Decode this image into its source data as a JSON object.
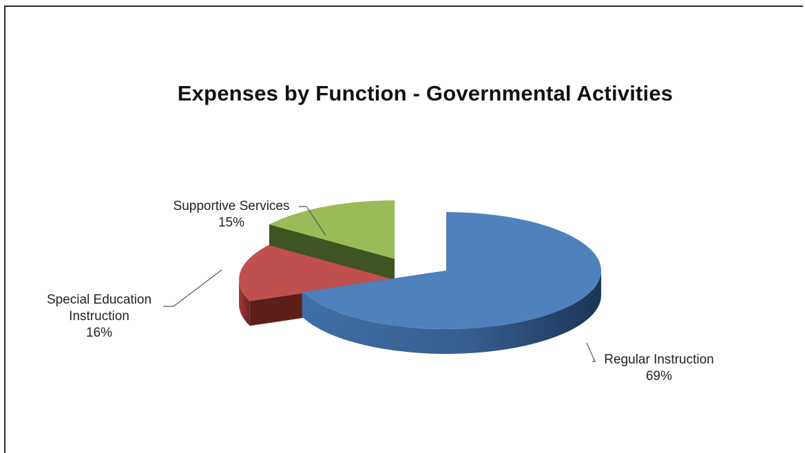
{
  "chart_data": {
    "type": "pie",
    "title": "Expenses by Function - Governmental Activities",
    "slices": [
      {
        "name": "Regular Instruction",
        "label_lines": [
          "Regular Instruction",
          "69%"
        ],
        "value": 69,
        "color": "#4f81bd"
      },
      {
        "name": "Special Education Instruction",
        "label_lines": [
          "Special Education",
          "Instruction",
          "16%"
        ],
        "value": 16,
        "color": "#c0504d"
      },
      {
        "name": "Supportive Services",
        "label_lines": [
          "Supportive Services",
          "15%"
        ],
        "value": 15,
        "color": "#9bbb59"
      }
    ],
    "style": "3d-exploded",
    "legend": "none"
  }
}
